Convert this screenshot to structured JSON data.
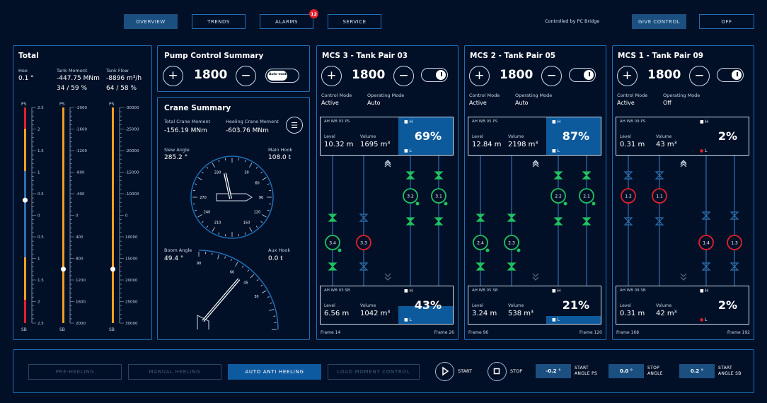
{
  "nav": {
    "tabs": [
      {
        "label": "Overview"
      },
      {
        "label": "Trends"
      },
      {
        "label": "Alarms"
      },
      {
        "label": "Service"
      }
    ],
    "alarm_count": "12",
    "controlled_by": "Controlled by PC Bridge",
    "give_control": "Give control",
    "off": "Off"
  },
  "total": {
    "title": "Total",
    "metrics": [
      {
        "label": "Hee",
        "value": "0.1 °"
      },
      {
        "label": "Tank Moment",
        "value": "-447.75 MNm",
        "sub": "34 / 59 %"
      },
      {
        "label": "Tank Flow",
        "value": "-8896 m³/h",
        "sub": "64 / 58 %"
      }
    ],
    "scales": [
      {
        "label": "PS",
        "ticks": [
          "2.5",
          "2",
          "1.5",
          "1",
          "0.5",
          "0",
          "0.5",
          "1",
          "1.5",
          "2",
          "2.5"
        ],
        "bottom": "SB",
        "level": 0.57
      },
      {
        "label": "PS",
        "ticks": [
          "-2000",
          "-1600",
          "-1200",
          "-800",
          "-400",
          "0",
          "400",
          "800",
          "1200",
          "1600",
          "2000"
        ],
        "bottom": "SB",
        "level": 0.25
      },
      {
        "label": "PS",
        "ticks": [
          "-30000",
          "-25000",
          "-20000",
          "-15000",
          "-10000",
          "0",
          "10000",
          "15000",
          "20000",
          "25000",
          "30000"
        ],
        "bottom": "SB",
        "level": 0.25
      }
    ]
  },
  "pump": {
    "title": "Pump Control Summary",
    "value": "1800",
    "toggle": "Auto mode"
  },
  "crane": {
    "title": "Crane Summary",
    "total_moment_label": "Total Crane Moment",
    "total_moment": "-156.19 MNm",
    "heeling_moment_label": "Heeling Crane Moment",
    "heeling_moment": "-603.76 MNm",
    "slew_angle_label": "Slew Angle",
    "slew_angle": "285.2 °",
    "main_hook_label": "Main Hook",
    "main_hook": "108.0 t",
    "boom_angle_label": "Boom Angle",
    "boom_angle": "49.4 °",
    "aux_hook_label": "Aux Hook",
    "aux_hook": "0.0 t",
    "compass_labels": [
      "270",
      "330",
      "30",
      "60",
      "90",
      "120",
      "150",
      "210",
      "240"
    ],
    "boom_scale_labels": [
      "90",
      "60",
      "45",
      "30"
    ]
  },
  "tanks": [
    {
      "title": "MCS 3 - Tank Pair 03",
      "value": "1800",
      "control_mode_label": "Control Mode",
      "control_mode": "Active",
      "operating_mode_label": "Operating Mode",
      "operating_mode": "Auto",
      "top": {
        "name": "AH WB 03 PS",
        "level_label": "Level",
        "level": "10.32 m",
        "volume_label": "Volume",
        "volume": "1695 m³",
        "pct": "69%",
        "fill": 1.0
      },
      "bottom": {
        "name": "AH WB 03 SB",
        "level_label": "Level",
        "level": "6.56 m",
        "volume_label": "Volume",
        "volume": "1042 m³",
        "pct": "43%",
        "fill": 0.48
      },
      "frame_left": "Frame 14",
      "frame_right": "Frame 26",
      "pumps": [
        "3.2",
        "3.1",
        "3.4",
        "3.3"
      ]
    },
    {
      "title": "MCS 2 - Tank Pair 05",
      "value": "1800",
      "control_mode_label": "Control Mode",
      "control_mode": "Active",
      "operating_mode_label": "Operating Mode",
      "operating_mode": "Auto",
      "top": {
        "name": "AH WB 05 PS",
        "level_label": "Level",
        "level": "12.84 m",
        "volume_label": "Volume",
        "volume": "2198 m³",
        "pct": "87%",
        "fill": 1.0
      },
      "bottom": {
        "name": "AH WB 05 SB",
        "level_label": "Level",
        "level": "3.24 m",
        "volume_label": "Volume",
        "volume": "538 m³",
        "pct": "21%",
        "fill": 0.2
      },
      "frame_left": "Frame 96",
      "frame_right": "Frame 120",
      "pumps": [
        "2.2",
        "2.1",
        "2.4",
        "2.3"
      ]
    },
    {
      "title": "MCS 1 - Tank Pair 09",
      "value": "1800",
      "control_mode_label": "Control Mode",
      "control_mode": "Active",
      "operating_mode_label": "Operating Mode",
      "operating_mode": "Off",
      "top": {
        "name": "AH WB 09 PS",
        "level_label": "Level",
        "level": "0.31 m",
        "volume_label": "Volume",
        "volume": "43 m³",
        "pct": "2%",
        "fill": 0
      },
      "bottom": {
        "name": "AH WB 09 SB",
        "level_label": "Level",
        "level": "0.31 m",
        "volume_label": "Volume",
        "volume": "42 m³",
        "pct": "2%",
        "fill": 0
      },
      "frame_left": "Frame 168",
      "frame_right": "Frame 192",
      "pumps": [
        "1.2",
        "1.1",
        "1.4",
        "1.3"
      ]
    }
  ],
  "bottom": {
    "modes": [
      {
        "label": "Pre-heeling"
      },
      {
        "label": "Manual heeling"
      },
      {
        "label": "Auto anti heeling"
      },
      {
        "label": "Load moment control"
      }
    ],
    "start": "Start",
    "stop": "Stop",
    "inputs": [
      {
        "value": "-0.2 °",
        "label1": "Start",
        "label2": "Angle PS"
      },
      {
        "value": "0.0 °",
        "label1": "Stop",
        "label2": "Angle"
      },
      {
        "value": "0.2 °",
        "label1": "Start",
        "label2": "Angle SB"
      }
    ]
  },
  "colors": {
    "bg": "#021027",
    "border": "#1d6fb5",
    "accent": "#0c5a9c",
    "green": "#20c060",
    "red": "#e1202a",
    "orange": "#f0a020"
  }
}
